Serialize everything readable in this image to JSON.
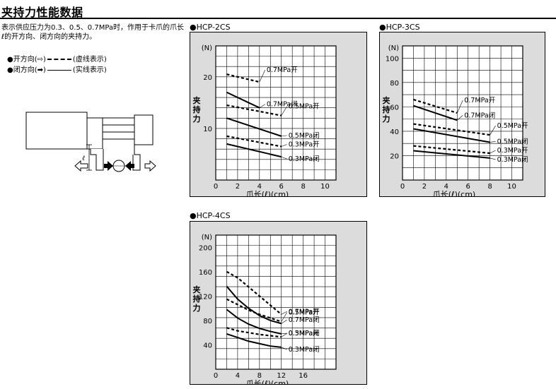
{
  "page": {
    "title": "夹持力性能数据",
    "description": "表示供应压力为0.3、0.5、0.7MPa时，作用于卡爪的爪长ℓ的开方向、闭方向的夹持力。",
    "legend": {
      "open": {
        "label": "开方向(⇨)",
        "style": "(虚线表示)"
      },
      "close": {
        "label": "闭方向(➡)",
        "style": "(实线表示)"
      }
    },
    "diagram_label": "ℓ"
  },
  "chart_data": [
    {
      "type": "line",
      "title": "HCP-2CS",
      "xlabel": "爪长(ℓ)(cm)",
      "ylabel": "夹持力",
      "yunit": "(N)",
      "xlim": [
        0,
        11
      ],
      "ylim": [
        0,
        26
      ],
      "xticks": [
        0,
        2,
        4,
        6,
        8,
        10
      ],
      "yticks": [
        10,
        20
      ],
      "grid": true,
      "series": [
        {
          "name": "0.7MPa开",
          "style": "dashed",
          "x": [
            1,
            4
          ],
          "y": [
            20.5,
            19
          ]
        },
        {
          "name": "0.7MPa闭",
          "style": "solid",
          "x": [
            1,
            4
          ],
          "y": [
            17,
            14
          ]
        },
        {
          "name": "0.5MPa开",
          "style": "dashed",
          "x": [
            1,
            6
          ],
          "y": [
            14.5,
            12.5
          ]
        },
        {
          "name": "0.5MPa闭",
          "style": "solid",
          "x": [
            1,
            6
          ],
          "y": [
            12,
            8.5
          ]
        },
        {
          "name": "0.3MPa开",
          "style": "dashed",
          "x": [
            1,
            6
          ],
          "y": [
            8.5,
            6.5
          ]
        },
        {
          "name": "0.3MPa闭",
          "style": "solid",
          "x": [
            1,
            6
          ],
          "y": [
            7,
            4.5
          ]
        }
      ]
    },
    {
      "type": "line",
      "title": "HCP-3CS",
      "xlabel": "爪长(ℓ)(cm)",
      "ylabel": "夹持力",
      "yunit": "(N)",
      "xlim": [
        0,
        11
      ],
      "ylim": [
        0,
        110
      ],
      "xticks": [
        0,
        2,
        4,
        6,
        8,
        10
      ],
      "yticks": [
        20,
        40,
        60,
        80,
        100
      ],
      "grid": true,
      "series": [
        {
          "name": "0.7MPa开",
          "style": "dashed",
          "x": [
            1,
            5
          ],
          "y": [
            66,
            55
          ]
        },
        {
          "name": "0.7MPa闭",
          "style": "solid",
          "x": [
            1,
            5
          ],
          "y": [
            61,
            49
          ]
        },
        {
          "name": "0.5MPa开",
          "style": "dashed",
          "x": [
            1,
            8
          ],
          "y": [
            46,
            37
          ]
        },
        {
          "name": "0.5MPa闭",
          "style": "solid",
          "x": [
            1,
            8
          ],
          "y": [
            42,
            31
          ]
        },
        {
          "name": "0.3MPa开",
          "style": "dashed",
          "x": [
            1,
            8
          ],
          "y": [
            28,
            22
          ]
        },
        {
          "name": "0.3MPa闭",
          "style": "solid",
          "x": [
            1,
            8
          ],
          "y": [
            24,
            18
          ]
        }
      ]
    },
    {
      "type": "line",
      "title": "HCP-4CS",
      "xlabel": "爪长(ℓ)(cm)",
      "ylabel": "夹持力",
      "yunit": "(N)",
      "xlim": [
        0,
        22
      ],
      "ylim": [
        0,
        220
      ],
      "xticks": [
        0,
        4,
        8,
        12,
        16
      ],
      "yticks": [
        40,
        80,
        120,
        160,
        200
      ],
      "grid": true,
      "series": [
        {
          "name": "0.7MPa开",
          "style": "dashed",
          "x": [
            2,
            4,
            6,
            8,
            10,
            12
          ],
          "y": [
            160,
            150,
            135,
            120,
            105,
            90
          ]
        },
        {
          "name": "0.7MPa闭",
          "style": "solid",
          "x": [
            2,
            4,
            6,
            8,
            10,
            12
          ],
          "y": [
            136,
            115,
            100,
            88,
            80,
            75
          ]
        },
        {
          "name": "0.5MPa开",
          "style": "dashed",
          "x": [
            2,
            4,
            6,
            8,
            10,
            12
          ],
          "y": [
            115,
            106,
            97,
            90,
            84,
            78
          ]
        },
        {
          "name": "0.5MPa闭",
          "style": "solid",
          "x": [
            2,
            4,
            6,
            8,
            10,
            12
          ],
          "y": [
            98,
            84,
            74,
            67,
            62,
            58
          ]
        },
        {
          "name": "0.3MPa开",
          "style": "dashed",
          "x": [
            2,
            4,
            6,
            8,
            10,
            12
          ],
          "y": [
            68,
            63,
            60,
            57,
            55,
            53
          ]
        },
        {
          "name": "0.3MPa闭",
          "style": "solid",
          "x": [
            2,
            4,
            6,
            8,
            10,
            12
          ],
          "y": [
            58,
            52,
            46,
            42,
            38,
            36
          ]
        }
      ]
    }
  ]
}
